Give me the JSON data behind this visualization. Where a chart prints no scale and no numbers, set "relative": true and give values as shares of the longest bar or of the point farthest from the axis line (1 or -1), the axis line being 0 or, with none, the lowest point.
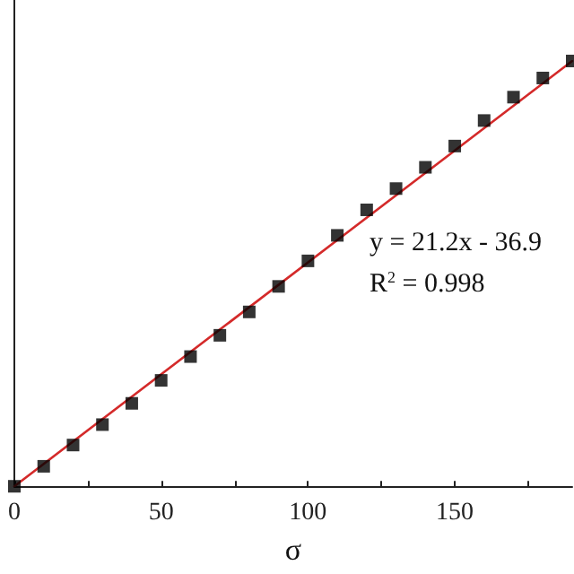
{
  "chart_data": {
    "type": "scatter",
    "xlabel": "σ",
    "relative": true,
    "tick_labels": "x",
    "grid": false,
    "marker": "square",
    "x": [
      0,
      10,
      20,
      30,
      40,
      50,
      60,
      70,
      80,
      90,
      100,
      110,
      120,
      130,
      140,
      150,
      160,
      170,
      180,
      190
    ],
    "xlim": [
      0,
      190
    ],
    "xticks": [
      0,
      {
        "value": 25,
        "label": null
      },
      50,
      {
        "value": 75,
        "label": null
      },
      100,
      {
        "value": 125,
        "label": null
      },
      150,
      {
        "value": 175,
        "label": null
      }
    ],
    "series": [
      {
        "type": "scatter",
        "color": "#000000",
        "values": [
          0.0,
          0.047,
          0.097,
          0.145,
          0.195,
          0.249,
          0.305,
          0.355,
          0.41,
          0.47,
          0.53,
          0.59,
          0.65,
          0.7,
          0.75,
          0.8,
          0.86,
          0.915,
          0.96,
          1.0
        ]
      },
      {
        "type": "line",
        "color": "#d42a2a",
        "line_style": "solid",
        "marker": "none",
        "x": [
          0,
          190
        ],
        "values": [
          0.0,
          1.0
        ]
      }
    ],
    "annotations": [
      "y = 21.2x - 36.9",
      "R$^{2}$ = 0.998"
    ]
  }
}
